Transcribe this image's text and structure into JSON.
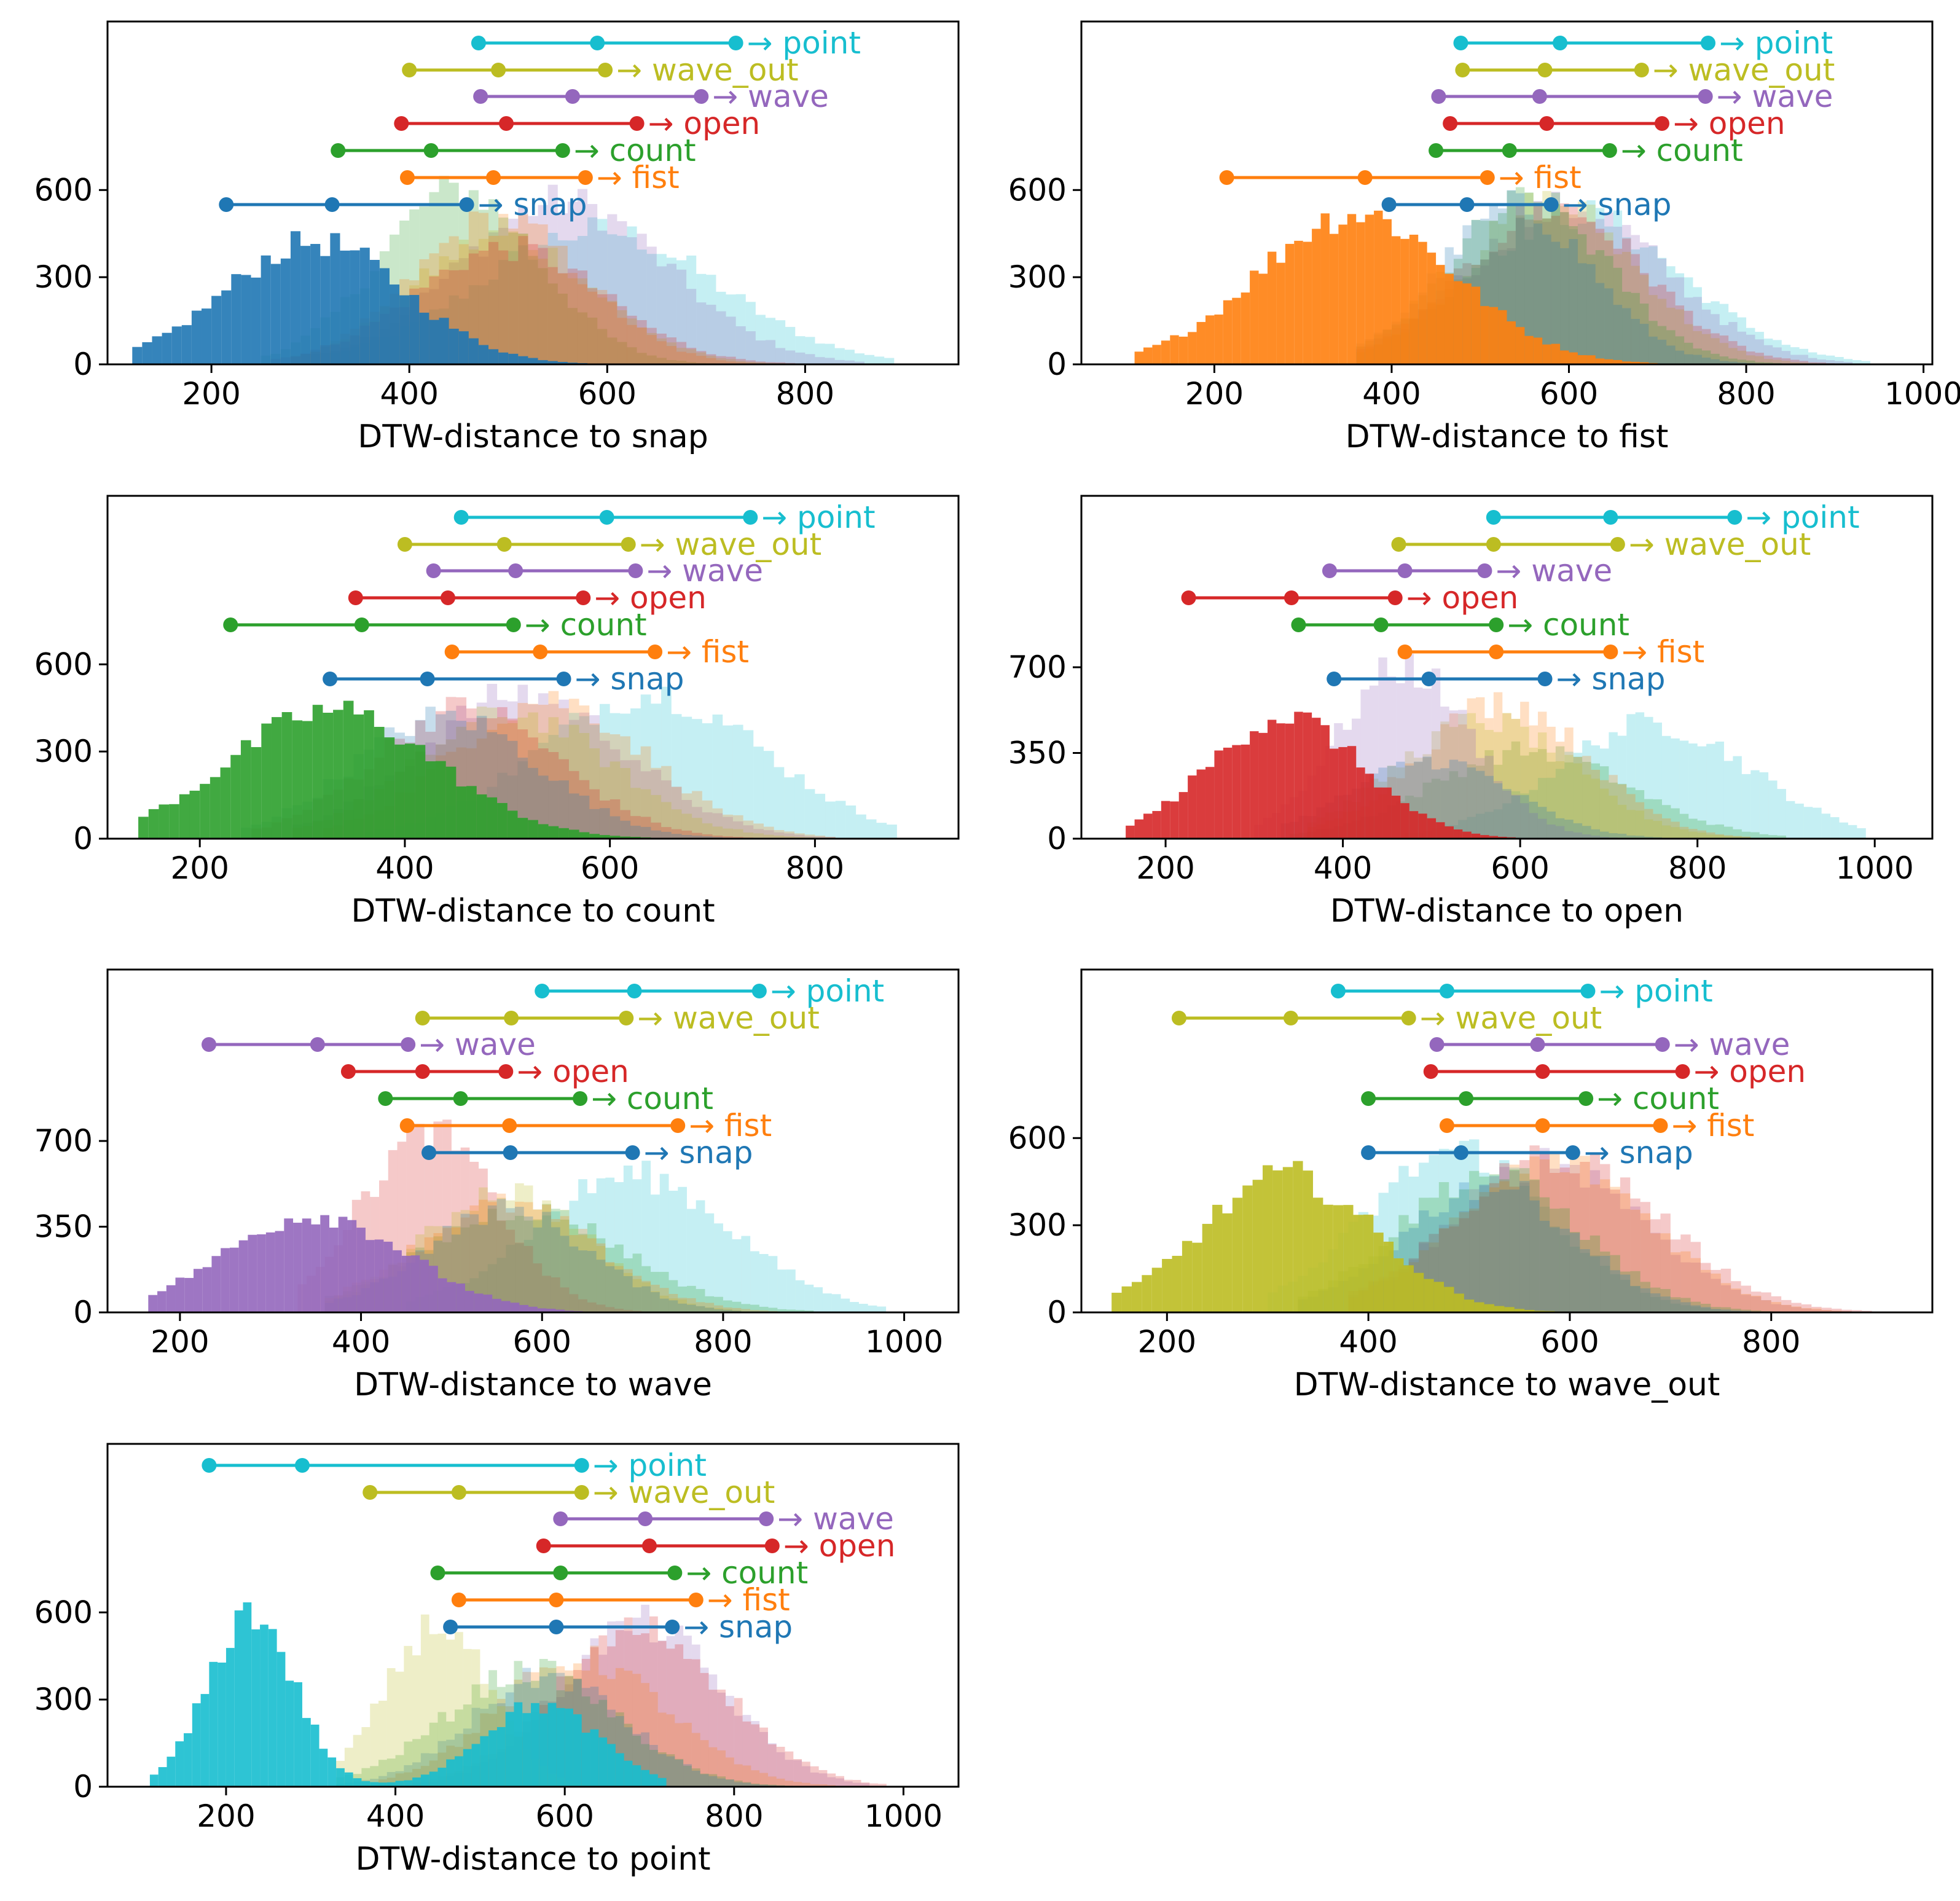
{
  "figure": {
    "background": "#ffffff"
  },
  "colors": {
    "snap": "#1f77b4",
    "fist": "#ff7f0e",
    "count": "#2ca02c",
    "open": "#d62728",
    "wave": "#9467bd",
    "wave_out": "#bcbd22",
    "point": "#17becf"
  },
  "chart_data": [
    {
      "type": "histogram",
      "xlabel": "DTW-distance to snap",
      "xlim": [
        95,
        955
      ],
      "ylim": [
        0,
        1180
      ],
      "xticks": [
        200,
        400,
        600,
        800
      ],
      "yticks": [
        0,
        300,
        600
      ],
      "ranges": [
        {
          "label": "→ point",
          "key": "point",
          "lo": 470,
          "mid": 590,
          "hi": 730
        },
        {
          "label": "→ wave_out",
          "key": "wave_out",
          "lo": 400,
          "mid": 490,
          "hi": 598
        },
        {
          "label": "→ wave",
          "key": "wave",
          "lo": 472,
          "mid": 565,
          "hi": 695
        },
        {
          "label": "→ open",
          "key": "open",
          "lo": 392,
          "mid": 498,
          "hi": 630
        },
        {
          "label": "→ count",
          "key": "count",
          "lo": 328,
          "mid": 422,
          "hi": 555
        },
        {
          "label": "→ fist",
          "key": "fist",
          "lo": 398,
          "mid": 485,
          "hi": 578
        },
        {
          "label": "→ snap",
          "key": "snap",
          "lo": 215,
          "mid": 322,
          "hi": 458
        }
      ],
      "hists": [
        {
          "key": "point",
          "bimodal": false,
          "mean": 590,
          "sd": 120,
          "peak": 460,
          "lo": 320,
          "hi": 890
        },
        {
          "key": "wave",
          "bimodal": false,
          "mean": 555,
          "sd": 105,
          "peak": 560,
          "lo": 300,
          "hi": 860
        },
        {
          "key": "count",
          "bimodal": false,
          "mean": 450,
          "sd": 80,
          "peak": 600,
          "lo": 250,
          "hi": 780
        },
        {
          "key": "wave_out",
          "bimodal": false,
          "mean": 495,
          "sd": 90,
          "peak": 440,
          "lo": 280,
          "hi": 800
        },
        {
          "key": "fist",
          "bimodal": false,
          "mean": 490,
          "sd": 85,
          "peak": 500,
          "lo": 280,
          "hi": 760
        },
        {
          "key": "open",
          "bimodal": false,
          "mean": 500,
          "sd": 95,
          "peak": 400,
          "lo": 260,
          "hi": 820
        },
        {
          "key": "snap",
          "bimodal": false,
          "mean": 305,
          "sd": 90,
          "peak": 420,
          "lo": 120,
          "hi": 700
        }
      ]
    },
    {
      "type": "histogram",
      "xlabel": "DTW-distance to fist",
      "xlim": [
        50,
        1010
      ],
      "ylim": [
        0,
        1180
      ],
      "xticks": [
        200,
        400,
        600,
        800,
        1000
      ],
      "yticks": [
        0,
        300,
        600
      ],
      "ranges": [
        {
          "label": "→ point",
          "key": "point",
          "lo": 478,
          "mid": 590,
          "hi": 757
        },
        {
          "label": "→ wave_out",
          "key": "wave_out",
          "lo": 480,
          "mid": 573,
          "hi": 682
        },
        {
          "label": "→ wave",
          "key": "wave",
          "lo": 453,
          "mid": 567,
          "hi": 754
        },
        {
          "label": "→ open",
          "key": "open",
          "lo": 466,
          "mid": 575,
          "hi": 705
        },
        {
          "label": "→ count",
          "key": "count",
          "lo": 450,
          "mid": 533,
          "hi": 646
        },
        {
          "label": "→ fist",
          "key": "fist",
          "lo": 214,
          "mid": 370,
          "hi": 508
        },
        {
          "label": "→ snap",
          "key": "snap",
          "lo": 397,
          "mid": 485,
          "hi": 580
        }
      ],
      "hists": [
        {
          "key": "point",
          "bimodal": false,
          "mean": 605,
          "sd": 120,
          "peak": 520,
          "lo": 380,
          "hi": 940
        },
        {
          "key": "wave",
          "bimodal": false,
          "mean": 600,
          "sd": 110,
          "peak": 540,
          "lo": 360,
          "hi": 920
        },
        {
          "key": "wave_out",
          "bimodal": false,
          "mean": 580,
          "sd": 95,
          "peak": 560,
          "lo": 360,
          "hi": 880
        },
        {
          "key": "open",
          "bimodal": false,
          "mean": 585,
          "sd": 100,
          "peak": 540,
          "lo": 360,
          "hi": 900
        },
        {
          "key": "count",
          "bimodal": false,
          "mean": 555,
          "sd": 90,
          "peak": 560,
          "lo": 360,
          "hi": 860
        },
        {
          "key": "snap",
          "bimodal": false,
          "mean": 540,
          "sd": 85,
          "peak": 540,
          "lo": 360,
          "hi": 820
        },
        {
          "key": "fist",
          "bimodal": false,
          "mean": 360,
          "sd": 110,
          "peak": 520,
          "lo": 110,
          "hi": 700
        }
      ]
    },
    {
      "type": "histogram",
      "xlabel": "DTW-distance to count",
      "xlim": [
        110,
        940
      ],
      "ylim": [
        0,
        1180
      ],
      "xticks": [
        200,
        400,
        600,
        800
      ],
      "yticks": [
        0,
        300,
        600
      ],
      "ranges": [
        {
          "label": "→ point",
          "key": "point",
          "lo": 455,
          "mid": 597,
          "hi": 737
        },
        {
          "label": "→ wave_out",
          "key": "wave_out",
          "lo": 400,
          "mid": 497,
          "hi": 618
        },
        {
          "label": "→ wave",
          "key": "wave",
          "lo": 428,
          "mid": 508,
          "hi": 625
        },
        {
          "label": "→ open",
          "key": "open",
          "lo": 352,
          "mid": 442,
          "hi": 574
        },
        {
          "label": "→ count",
          "key": "count",
          "lo": 230,
          "mid": 358,
          "hi": 506
        },
        {
          "label": "→ fist",
          "key": "fist",
          "lo": 446,
          "mid": 532,
          "hi": 644
        },
        {
          "label": "→ snap",
          "key": "snap",
          "lo": 327,
          "mid": 422,
          "hi": 555
        }
      ],
      "hists": [
        {
          "key": "point",
          "bimodal": false,
          "mean": 640,
          "sd": 110,
          "peak": 500,
          "lo": 360,
          "hi": 880
        },
        {
          "key": "wave",
          "bimodal": false,
          "mean": 515,
          "sd": 100,
          "peak": 500,
          "lo": 290,
          "hi": 820
        },
        {
          "key": "fist",
          "bimodal": false,
          "mean": 540,
          "sd": 95,
          "peak": 480,
          "lo": 320,
          "hi": 820
        },
        {
          "key": "wave_out",
          "bimodal": false,
          "mean": 505,
          "sd": 95,
          "peak": 430,
          "lo": 290,
          "hi": 800
        },
        {
          "key": "open",
          "bimodal": false,
          "mean": 460,
          "sd": 90,
          "peak": 450,
          "lo": 250,
          "hi": 780
        },
        {
          "key": "snap",
          "bimodal": false,
          "mean": 440,
          "sd": 90,
          "peak": 420,
          "lo": 240,
          "hi": 760
        },
        {
          "key": "count",
          "bimodal": false,
          "mean": 330,
          "sd": 100,
          "peak": 440,
          "lo": 140,
          "hi": 700
        }
      ]
    },
    {
      "type": "histogram",
      "xlabel": "DTW-distance to open",
      "xlim": [
        105,
        1065
      ],
      "ylim": [
        0,
        1400
      ],
      "xticks": [
        200,
        400,
        600,
        800,
        1000
      ],
      "yticks": [
        0,
        350,
        700
      ],
      "ranges": [
        {
          "label": "→ point",
          "key": "point",
          "lo": 570,
          "mid": 702,
          "hi": 842
        },
        {
          "label": "→ wave_out",
          "key": "wave_out",
          "lo": 463,
          "mid": 570,
          "hi": 710
        },
        {
          "label": "→ wave",
          "key": "wave",
          "lo": 385,
          "mid": 470,
          "hi": 560
        },
        {
          "label": "→ open",
          "key": "open",
          "lo": 226,
          "mid": 342,
          "hi": 459
        },
        {
          "label": "→ count",
          "key": "count",
          "lo": 350,
          "mid": 443,
          "hi": 573
        },
        {
          "label": "→ fist",
          "key": "fist",
          "lo": 470,
          "mid": 573,
          "hi": 702
        },
        {
          "label": "→ snap",
          "key": "snap",
          "lo": 390,
          "mid": 497,
          "hi": 628
        }
      ],
      "hists": [
        {
          "key": "point",
          "bimodal": false,
          "mean": 750,
          "sd": 110,
          "peak": 470,
          "lo": 470,
          "hi": 990
        },
        {
          "key": "count",
          "bimodal": false,
          "mean": 610,
          "sd": 110,
          "peak": 360,
          "lo": 340,
          "hi": 900
        },
        {
          "key": "fist",
          "bimodal": false,
          "mean": 580,
          "sd": 95,
          "peak": 560,
          "lo": 360,
          "hi": 860
        },
        {
          "key": "wave_out",
          "bimodal": false,
          "mean": 560,
          "sd": 100,
          "peak": 480,
          "lo": 360,
          "hi": 860
        },
        {
          "key": "wave",
          "bimodal": false,
          "mean": 470,
          "sd": 75,
          "peak": 700,
          "lo": 300,
          "hi": 720
        },
        {
          "key": "snap",
          "bimodal": false,
          "mean": 500,
          "sd": 90,
          "peak": 320,
          "lo": 330,
          "hi": 760
        },
        {
          "key": "open",
          "bimodal": false,
          "mean": 335,
          "sd": 85,
          "peak": 500,
          "lo": 155,
          "hi": 660
        }
      ]
    },
    {
      "type": "histogram",
      "xlabel": "DTW-distance to wave",
      "xlim": [
        120,
        1060
      ],
      "ylim": [
        0,
        1400
      ],
      "xticks": [
        200,
        400,
        600,
        800,
        1000
      ],
      "yticks": [
        0,
        350,
        700
      ],
      "ranges": [
        {
          "label": "→ point",
          "key": "point",
          "lo": 600,
          "mid": 702,
          "hi": 840
        },
        {
          "label": "→ wave_out",
          "key": "wave_out",
          "lo": 468,
          "mid": 566,
          "hi": 693
        },
        {
          "label": "→ wave",
          "key": "wave",
          "lo": 232,
          "mid": 352,
          "hi": 452
        },
        {
          "label": "→ open",
          "key": "open",
          "lo": 386,
          "mid": 468,
          "hi": 560
        },
        {
          "label": "→ count",
          "key": "count",
          "lo": 427,
          "mid": 510,
          "hi": 642
        },
        {
          "label": "→ fist",
          "key": "fist",
          "lo": 451,
          "mid": 564,
          "hi": 750
        },
        {
          "label": "→ snap",
          "key": "snap",
          "lo": 475,
          "mid": 565,
          "hi": 700
        }
      ],
      "hists": [
        {
          "key": "point",
          "bimodal": false,
          "mean": 700,
          "sd": 110,
          "peak": 560,
          "lo": 450,
          "hi": 980
        },
        {
          "key": "count",
          "bimodal": false,
          "mean": 580,
          "sd": 110,
          "peak": 420,
          "lo": 360,
          "hi": 900
        },
        {
          "key": "open",
          "bimodal": false,
          "mean": 475,
          "sd": 75,
          "peak": 730,
          "lo": 330,
          "hi": 780
        },
        {
          "key": "wave_out",
          "bimodal": false,
          "mean": 560,
          "sd": 90,
          "peak": 500,
          "lo": 360,
          "hi": 820
        },
        {
          "key": "fist",
          "bimodal": false,
          "mean": 560,
          "sd": 100,
          "peak": 440,
          "lo": 360,
          "hi": 860
        },
        {
          "key": "snap",
          "bimodal": false,
          "mean": 560,
          "sd": 90,
          "peak": 420,
          "lo": 360,
          "hi": 820
        },
        {
          "key": "wave",
          "bimodal": false,
          "mean": 350,
          "sd": 100,
          "peak": 400,
          "lo": 165,
          "hi": 640
        }
      ]
    },
    {
      "type": "histogram",
      "xlabel": "DTW-distance to wave_out",
      "xlim": [
        115,
        960
      ],
      "ylim": [
        0,
        1180
      ],
      "xticks": [
        200,
        400,
        600,
        800
      ],
      "yticks": [
        0,
        300,
        600
      ],
      "ranges": [
        {
          "label": "→ point",
          "key": "point",
          "lo": 370,
          "mid": 478,
          "hi": 618
        },
        {
          "label": "→ wave_out",
          "key": "wave_out",
          "lo": 212,
          "mid": 323,
          "hi": 440
        },
        {
          "label": "→ wave",
          "key": "wave",
          "lo": 468,
          "mid": 568,
          "hi": 692
        },
        {
          "label": "→ open",
          "key": "open",
          "lo": 462,
          "mid": 573,
          "hi": 712
        },
        {
          "label": "→ count",
          "key": "count",
          "lo": 400,
          "mid": 497,
          "hi": 616
        },
        {
          "label": "→ fist",
          "key": "fist",
          "lo": 478,
          "mid": 573,
          "hi": 690
        },
        {
          "label": "→ snap",
          "key": "snap",
          "lo": 400,
          "mid": 492,
          "hi": 603
        }
      ],
      "hists": [
        {
          "key": "point",
          "bimodal": false,
          "mean": 490,
          "sd": 90,
          "peak": 560,
          "lo": 300,
          "hi": 800
        },
        {
          "key": "wave",
          "bimodal": false,
          "mean": 580,
          "sd": 95,
          "peak": 520,
          "lo": 380,
          "hi": 880
        },
        {
          "key": "open",
          "bimodal": false,
          "mean": 590,
          "sd": 100,
          "peak": 540,
          "lo": 380,
          "hi": 900
        },
        {
          "key": "fist",
          "bimodal": false,
          "mean": 585,
          "sd": 95,
          "peak": 520,
          "lo": 380,
          "hi": 880
        },
        {
          "key": "count",
          "bimodal": false,
          "mean": 520,
          "sd": 90,
          "peak": 480,
          "lo": 330,
          "hi": 820
        },
        {
          "key": "snap",
          "bimodal": false,
          "mean": 520,
          "sd": 85,
          "peak": 440,
          "lo": 330,
          "hi": 800
        },
        {
          "key": "wave_out",
          "bimodal": false,
          "mean": 320,
          "sd": 85,
          "peak": 470,
          "lo": 145,
          "hi": 600
        }
      ]
    },
    {
      "type": "histogram",
      "xlabel": "DTW-distance to point",
      "xlim": [
        60,
        1065
      ],
      "ylim": [
        0,
        1180
      ],
      "xticks": [
        200,
        400,
        600,
        800,
        1000
      ],
      "yticks": [
        0,
        300,
        600
      ],
      "ranges": [
        {
          "label": "→ point",
          "key": "point",
          "lo": 180,
          "mid": 290,
          "hi": 620
        },
        {
          "label": "→ wave_out",
          "key": "wave_out",
          "lo": 370,
          "mid": 475,
          "hi": 620
        },
        {
          "label": "→ wave",
          "key": "wave",
          "lo": 595,
          "mid": 695,
          "hi": 838
        },
        {
          "label": "→ open",
          "key": "open",
          "lo": 575,
          "mid": 700,
          "hi": 845
        },
        {
          "label": "→ count",
          "key": "count",
          "lo": 450,
          "mid": 595,
          "hi": 730
        },
        {
          "label": "→ fist",
          "key": "fist",
          "lo": 475,
          "mid": 590,
          "hi": 755
        },
        {
          "label": "→ snap",
          "key": "snap",
          "lo": 465,
          "mid": 590,
          "hi": 727
        }
      ],
      "hists": [
        {
          "key": "wave",
          "bimodal": false,
          "mean": 690,
          "sd": 95,
          "peak": 560,
          "lo": 420,
          "hi": 960
        },
        {
          "key": "open",
          "bimodal": false,
          "mean": 690,
          "sd": 100,
          "peak": 540,
          "lo": 420,
          "hi": 980
        },
        {
          "key": "fist",
          "bimodal": false,
          "mean": 620,
          "sd": 100,
          "peak": 440,
          "lo": 380,
          "hi": 920
        },
        {
          "key": "count",
          "bimodal": false,
          "mean": 560,
          "sd": 100,
          "peak": 400,
          "lo": 330,
          "hi": 880
        },
        {
          "key": "snap",
          "bimodal": false,
          "mean": 580,
          "sd": 90,
          "peak": 380,
          "lo": 330,
          "hi": 860
        },
        {
          "key": "wave_out",
          "bimodal": false,
          "mean": 450,
          "sd": 60,
          "peak": 560,
          "lo": 330,
          "hi": 700
        },
        {
          "key": "point",
          "bimodal": true,
          "mean": 230,
          "sd": 50,
          "peak": 600,
          "mean2": 570,
          "sd2": 70,
          "peak2": 280,
          "lo": 110,
          "hi": 720
        }
      ]
    }
  ]
}
